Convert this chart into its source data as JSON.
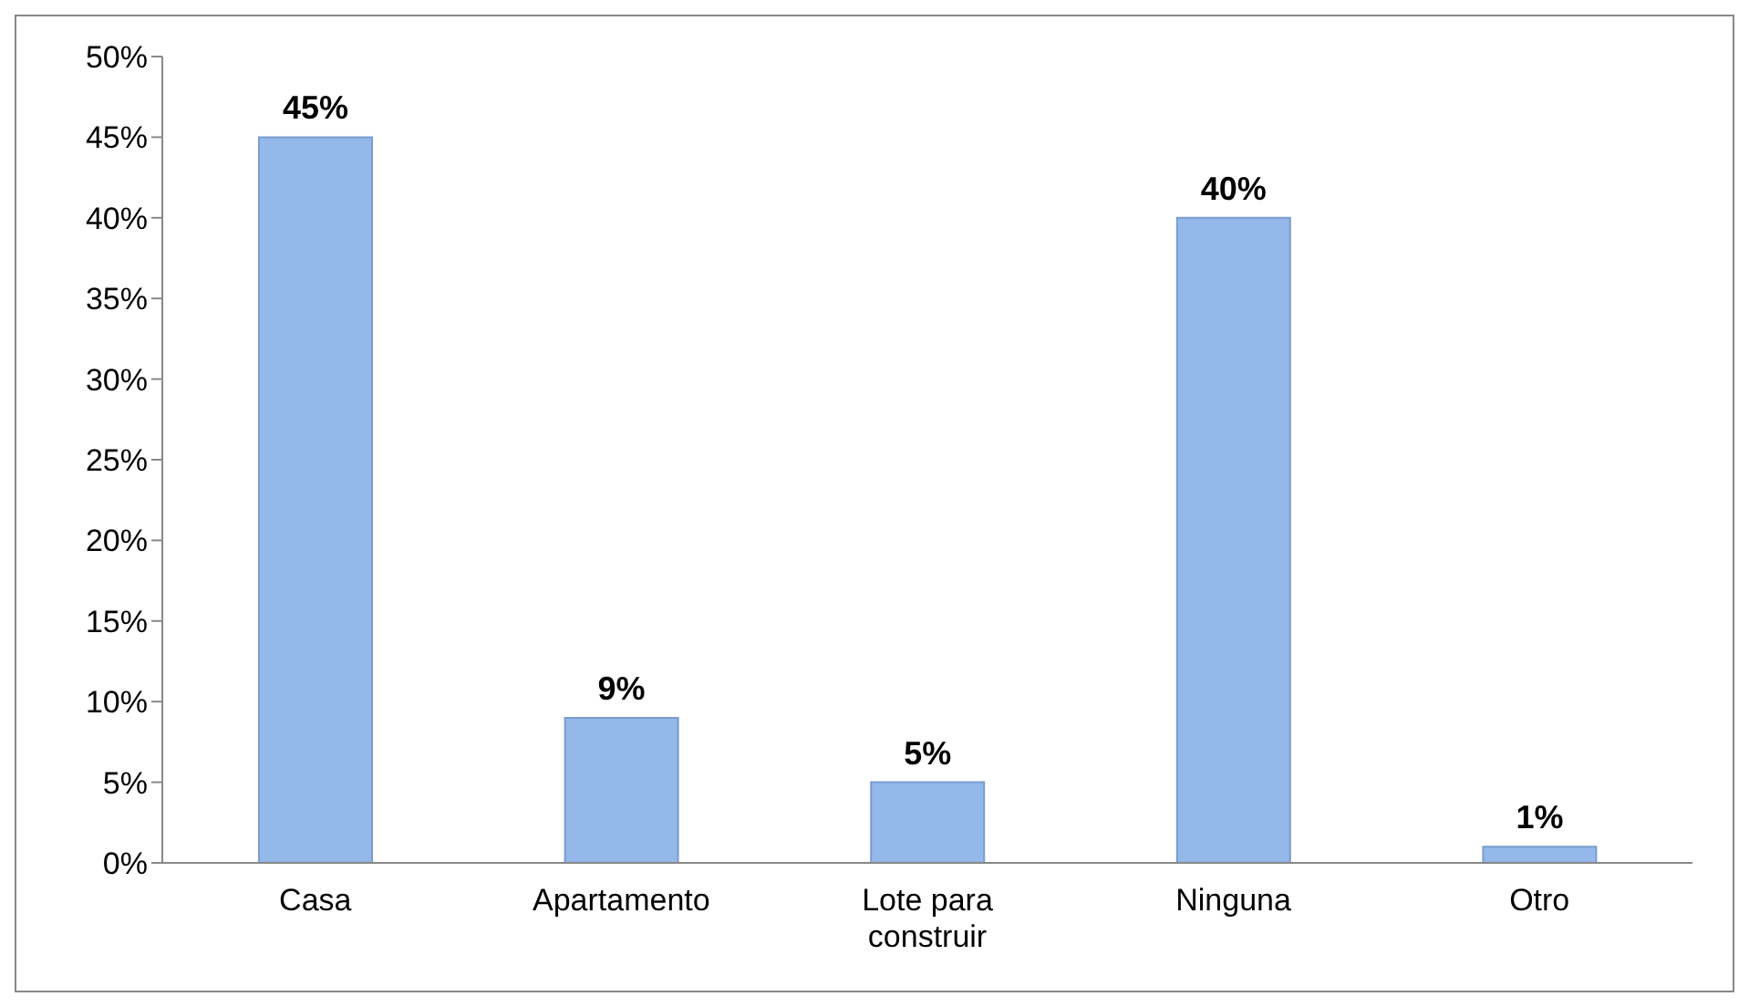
{
  "chart_data": {
    "type": "bar",
    "categories": [
      "Casa",
      "Apartamento",
      "Lote para construir",
      "Ninguna",
      "Otro"
    ],
    "values": [
      45,
      9,
      5,
      40,
      1
    ],
    "color": "#95b8ea",
    "value_labels": [
      "45%",
      "9%",
      "5%",
      "40%",
      "1%"
    ],
    "ylim": [
      0,
      50
    ],
    "yticks": [
      {
        "value": 0,
        "label": "0%"
      },
      {
        "value": 5,
        "label": "5%"
      },
      {
        "value": 10,
        "label": "10%"
      },
      {
        "value": 15,
        "label": "15%"
      },
      {
        "value": 20,
        "label": "20%"
      },
      {
        "value": 25,
        "label": "25%"
      },
      {
        "value": 30,
        "label": "30%"
      },
      {
        "value": 35,
        "label": "35%"
      },
      {
        "value": 40,
        "label": "40%"
      },
      {
        "value": 45,
        "label": "45%"
      },
      {
        "value": 50,
        "label": "50%"
      }
    ],
    "grid": false,
    "legend": false
  }
}
